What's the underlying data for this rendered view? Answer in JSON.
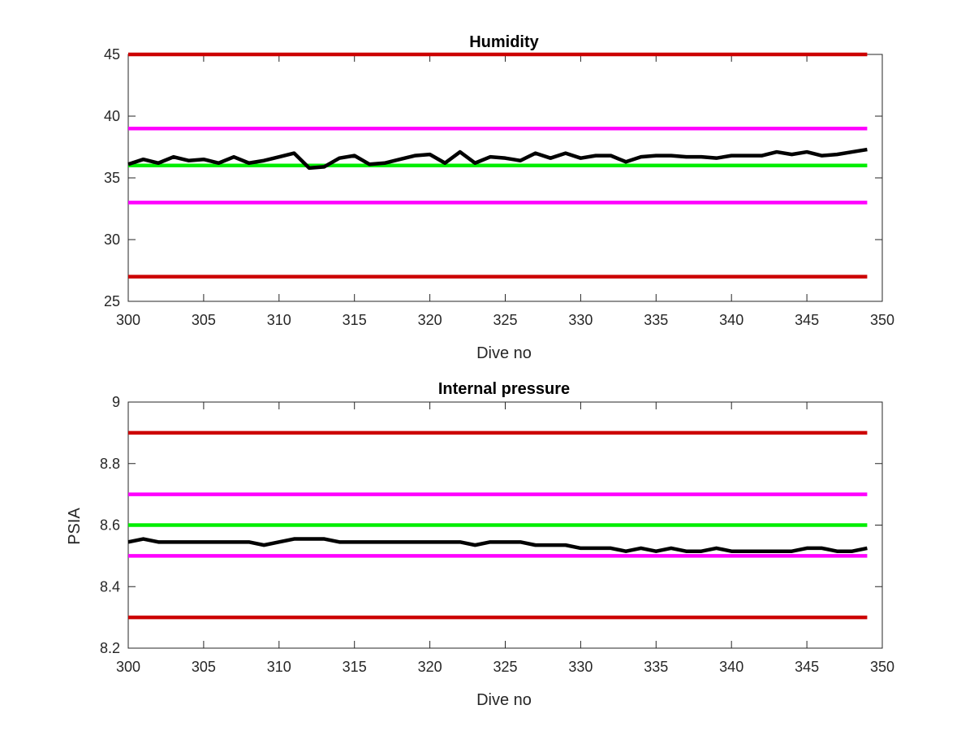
{
  "chart_data": [
    {
      "type": "line",
      "title": "Humidity",
      "xlabel": "Dive no",
      "ylabel": "",
      "xlim": [
        300,
        350
      ],
      "ylim": [
        25,
        45
      ],
      "xticks": [
        300,
        305,
        310,
        315,
        320,
        325,
        330,
        335,
        340,
        345,
        350
      ],
      "yticks": [
        25,
        30,
        35,
        40,
        45
      ],
      "grid": false,
      "series": [
        {
          "color": "#000000",
          "x": [
            300,
            301,
            302,
            303,
            304,
            305,
            306,
            307,
            308,
            309,
            310,
            311,
            312,
            313,
            314,
            315,
            316,
            317,
            318,
            319,
            320,
            321,
            322,
            323,
            324,
            325,
            326,
            327,
            328,
            329,
            330,
            331,
            332,
            333,
            334,
            335,
            336,
            337,
            338,
            339,
            340,
            341,
            342,
            343,
            344,
            345,
            346,
            347,
            348,
            349
          ],
          "values": [
            36.1,
            36.5,
            36.2,
            36.7,
            36.4,
            36.5,
            36.2,
            36.7,
            36.2,
            36.4,
            36.7,
            37.0,
            35.8,
            35.9,
            36.6,
            36.8,
            36.1,
            36.2,
            36.5,
            36.8,
            36.9,
            36.2,
            37.1,
            36.2,
            36.7,
            36.6,
            36.4,
            37.0,
            36.6,
            37.0,
            36.6,
            36.8,
            36.8,
            36.3,
            36.7,
            36.8,
            36.8,
            36.7,
            36.7,
            36.6,
            36.8,
            36.8,
            36.8,
            37.1,
            36.9,
            37.1,
            36.8,
            36.9,
            37.1,
            37.3
          ]
        },
        {
          "color": "#cc0000",
          "x": [
            300,
            349
          ],
          "values": [
            45,
            45
          ]
        },
        {
          "color": "#ff00ff",
          "x": [
            300,
            349
          ],
          "values": [
            39,
            39
          ]
        },
        {
          "color": "#00ee00",
          "x": [
            300,
            349
          ],
          "values": [
            36,
            36
          ]
        },
        {
          "color": "#ff00ff",
          "x": [
            300,
            349
          ],
          "values": [
            33,
            33
          ]
        },
        {
          "color": "#cc0000",
          "x": [
            300,
            349
          ],
          "values": [
            27,
            27
          ]
        }
      ]
    },
    {
      "type": "line",
      "title": "Internal pressure",
      "xlabel": "Dive no",
      "ylabel": "PSIA",
      "xlim": [
        300,
        350
      ],
      "ylim": [
        8.2,
        9.0
      ],
      "xticks": [
        300,
        305,
        310,
        315,
        320,
        325,
        330,
        335,
        340,
        345,
        350
      ],
      "yticks": [
        8.2,
        8.4,
        8.6,
        8.8,
        9.0
      ],
      "ytick_labels": [
        "8.2",
        "8.4",
        "8.6",
        "8.8",
        "9"
      ],
      "grid": false,
      "series": [
        {
          "color": "#000000",
          "x": [
            300,
            301,
            302,
            303,
            304,
            305,
            306,
            307,
            308,
            309,
            310,
            311,
            312,
            313,
            314,
            315,
            316,
            317,
            318,
            319,
            320,
            321,
            322,
            323,
            324,
            325,
            326,
            327,
            328,
            329,
            330,
            331,
            332,
            333,
            334,
            335,
            336,
            337,
            338,
            339,
            340,
            341,
            342,
            343,
            344,
            345,
            346,
            347,
            348,
            349
          ],
          "values": [
            8.545,
            8.555,
            8.545,
            8.545,
            8.545,
            8.545,
            8.545,
            8.545,
            8.545,
            8.535,
            8.545,
            8.555,
            8.555,
            8.555,
            8.545,
            8.545,
            8.545,
            8.545,
            8.545,
            8.545,
            8.545,
            8.545,
            8.545,
            8.535,
            8.545,
            8.545,
            8.545,
            8.535,
            8.535,
            8.535,
            8.525,
            8.525,
            8.525,
            8.515,
            8.525,
            8.515,
            8.525,
            8.515,
            8.515,
            8.525,
            8.515,
            8.515,
            8.515,
            8.515,
            8.515,
            8.525,
            8.525,
            8.515,
            8.515,
            8.525
          ]
        },
        {
          "color": "#cc0000",
          "x": [
            300,
            349
          ],
          "values": [
            8.9,
            8.9
          ]
        },
        {
          "color": "#ff00ff",
          "x": [
            300,
            349
          ],
          "values": [
            8.7,
            8.7
          ]
        },
        {
          "color": "#00ee00",
          "x": [
            300,
            349
          ],
          "values": [
            8.6,
            8.6
          ]
        },
        {
          "color": "#ff00ff",
          "x": [
            300,
            349
          ],
          "values": [
            8.5,
            8.5
          ]
        },
        {
          "color": "#cc0000",
          "x": [
            300,
            349
          ],
          "values": [
            8.3,
            8.3
          ]
        }
      ]
    }
  ]
}
